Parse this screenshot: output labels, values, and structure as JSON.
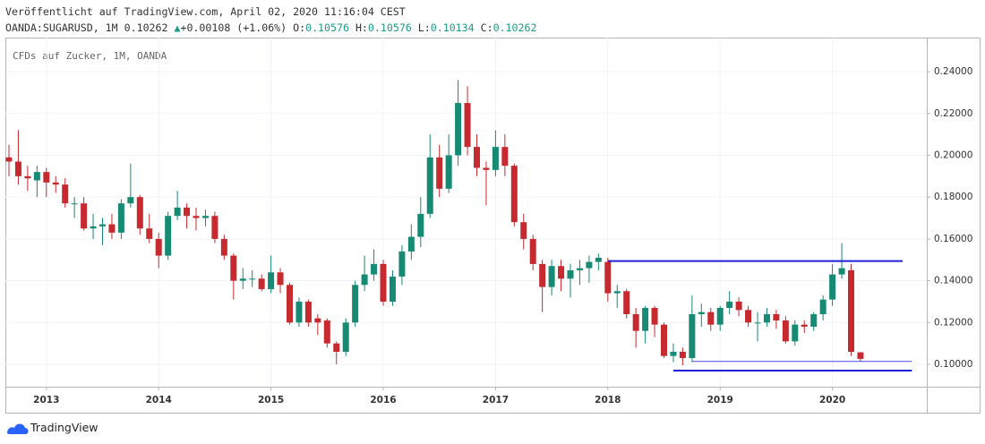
{
  "chart_data": {
    "type": "candlestick",
    "published": "Veröffentlicht auf TradingView.com, April 02, 2020 11:16:04 CEST",
    "symbol": "OANDA:SUGARUSD, 1M",
    "last": "0.10262",
    "arrow": "▲",
    "change": "+0.00108 (+1.06%)",
    "ohlc_labels": [
      "O:",
      "H:",
      "L:",
      "C:"
    ],
    "ohlc_values": [
      "0.10576",
      "0.10576",
      "0.10134",
      "0.10262"
    ],
    "legend": "CFDs auf Zucker, 1M, OANDA",
    "brand": "TradingView",
    "up_color": "#168a73",
    "down_color": "#c62a2f",
    "grid": true,
    "categories": [
      null,
      null,
      null,
      null,
      "2013",
      null,
      null,
      null,
      null,
      null,
      null,
      null,
      null,
      null,
      null,
      null,
      "2014",
      null,
      null,
      null,
      null,
      null,
      null,
      null,
      null,
      null,
      null,
      null,
      "2015",
      null,
      null,
      null,
      null,
      null,
      null,
      null,
      null,
      null,
      null,
      null,
      "2016",
      null,
      null,
      null,
      null,
      null,
      null,
      null,
      null,
      null,
      null,
      null,
      "2017",
      null,
      null,
      null,
      null,
      null,
      null,
      null,
      null,
      null,
      null,
      null,
      "2018",
      null,
      null,
      null,
      null,
      null,
      null,
      null,
      null,
      null,
      null,
      null,
      "2019",
      null,
      null,
      null,
      null,
      null,
      null,
      null,
      null,
      null,
      null,
      null,
      "2020",
      null,
      null,
      null
    ],
    "open": [
      0.199,
      0.197,
      0.19,
      0.188,
      0.192,
      0.187,
      0.186,
      0.177,
      0.177,
      0.165,
      0.166,
      0.167,
      0.163,
      0.177,
      0.18,
      0.165,
      0.16,
      0.152,
      0.171,
      0.175,
      0.171,
      0.17,
      0.171,
      0.16,
      0.152,
      0.14,
      0.141,
      0.141,
      0.136,
      0.144,
      0.138,
      0.12,
      0.13,
      0.122,
      0.121,
      0.11,
      0.106,
      0.12,
      0.138,
      0.143,
      0.148,
      0.13,
      0.142,
      0.154,
      0.161,
      0.172,
      0.199,
      0.184,
      0.2,
      0.225,
      0.204,
      0.194,
      0.193,
      0.204,
      0.195,
      0.168,
      0.16,
      0.148,
      0.137,
      0.147,
      0.141,
      0.145,
      0.146,
      0.149,
      0.149,
      0.134,
      0.135,
      0.124,
      0.116,
      0.127,
      0.119,
      0.104,
      0.106,
      0.103,
      0.124,
      0.125,
      0.119,
      0.127,
      0.13,
      0.126,
      0.12,
      0.12,
      0.124,
      0.121,
      0.111,
      0.119,
      0.118,
      0.124,
      0.131,
      0.143,
      0.145,
      0.10576
    ],
    "high": [
      0.205,
      0.212,
      0.195,
      0.195,
      0.194,
      0.19,
      0.189,
      0.18,
      0.18,
      0.172,
      0.17,
      0.172,
      0.179,
      0.196,
      0.181,
      0.172,
      0.163,
      0.173,
      0.183,
      0.177,
      0.175,
      0.174,
      0.173,
      0.162,
      0.153,
      0.146,
      0.145,
      0.143,
      0.152,
      0.146,
      0.139,
      0.132,
      0.131,
      0.124,
      0.122,
      0.111,
      0.122,
      0.14,
      0.152,
      0.155,
      0.15,
      0.145,
      0.157,
      0.167,
      0.18,
      0.21,
      0.205,
      0.21,
      0.236,
      0.233,
      0.21,
      0.197,
      0.212,
      0.21,
      0.196,
      0.172,
      0.162,
      0.15,
      0.15,
      0.15,
      0.148,
      0.15,
      0.152,
      0.153,
      0.151,
      0.138,
      0.136,
      0.127,
      0.128,
      0.128,
      0.12,
      0.11,
      0.108,
      0.133,
      0.129,
      0.127,
      0.128,
      0.135,
      0.132,
      0.128,
      0.125,
      0.127,
      0.126,
      0.123,
      0.121,
      0.121,
      0.125,
      0.133,
      0.148,
      0.158,
      0.148,
      0.10576
    ],
    "low": [
      0.19,
      0.186,
      0.183,
      0.18,
      0.18,
      0.182,
      0.175,
      0.17,
      0.164,
      0.16,
      0.157,
      0.16,
      0.16,
      0.175,
      0.162,
      0.158,
      0.146,
      0.15,
      0.169,
      0.165,
      0.164,
      0.166,
      0.158,
      0.15,
      0.131,
      0.136,
      0.137,
      0.135,
      0.134,
      0.134,
      0.119,
      0.118,
      0.118,
      0.114,
      0.108,
      0.1,
      0.104,
      0.118,
      0.135,
      0.14,
      0.128,
      0.128,
      0.138,
      0.15,
      0.156,
      0.17,
      0.18,
      0.182,
      0.195,
      0.2,
      0.19,
      0.176,
      0.19,
      0.19,
      0.166,
      0.155,
      0.145,
      0.125,
      0.133,
      0.135,
      0.132,
      0.138,
      0.139,
      0.145,
      0.13,
      0.127,
      0.122,
      0.108,
      0.11,
      0.113,
      0.103,
      0.101,
      0.0995,
      0.101,
      0.118,
      0.116,
      0.116,
      0.124,
      0.123,
      0.118,
      0.111,
      0.118,
      0.117,
      0.11,
      0.109,
      0.115,
      0.116,
      0.121,
      0.128,
      0.141,
      0.104,
      0.10134
    ],
    "close": [
      0.197,
      0.19,
      0.189,
      0.192,
      0.187,
      0.186,
      0.177,
      0.177,
      0.165,
      0.166,
      0.167,
      0.163,
      0.177,
      0.18,
      0.165,
      0.16,
      0.152,
      0.171,
      0.175,
      0.171,
      0.17,
      0.171,
      0.16,
      0.152,
      0.14,
      0.141,
      0.141,
      0.136,
      0.144,
      0.138,
      0.12,
      0.13,
      0.12,
      0.12,
      0.11,
      0.106,
      0.12,
      0.138,
      0.143,
      0.148,
      0.13,
      0.142,
      0.154,
      0.161,
      0.172,
      0.199,
      0.184,
      0.2,
      0.225,
      0.204,
      0.194,
      0.193,
      0.204,
      0.195,
      0.168,
      0.16,
      0.148,
      0.137,
      0.147,
      0.141,
      0.145,
      0.146,
      0.149,
      0.151,
      0.134,
      0.135,
      0.124,
      0.116,
      0.127,
      0.119,
      0.104,
      0.106,
      0.103,
      0.124,
      0.125,
      0.119,
      0.127,
      0.13,
      0.126,
      0.12,
      0.12,
      0.124,
      0.121,
      0.111,
      0.119,
      0.118,
      0.124,
      0.131,
      0.143,
      0.146,
      0.106,
      0.10262
    ],
    "ylim": [
      0.0893,
      0.2563
    ],
    "yticks": [
      {
        "value": 0.1,
        "label": "0.10000"
      },
      {
        "value": 0.12,
        "label": "0.12000"
      },
      {
        "value": 0.14,
        "label": "0.14000"
      },
      {
        "value": 0.16,
        "label": "0.16000"
      },
      {
        "value": 0.18,
        "label": "0.18000"
      },
      {
        "value": 0.2,
        "label": "0.20000"
      },
      {
        "value": 0.22,
        "label": "0.22000"
      },
      {
        "value": 0.24,
        "label": "0.24000"
      }
    ],
    "lines": [
      {
        "value": 0.1494,
        "from": 64,
        "to": 95.5,
        "color": "#1f1fd6",
        "width": 2
      },
      {
        "value": 0.1014,
        "from": 73,
        "to": 96.5,
        "color": "#4a4ae8",
        "width": 1
      },
      {
        "value": 0.097,
        "from": 71,
        "to": 96.5,
        "color": "#1f1fd6",
        "width": 2
      }
    ]
  }
}
